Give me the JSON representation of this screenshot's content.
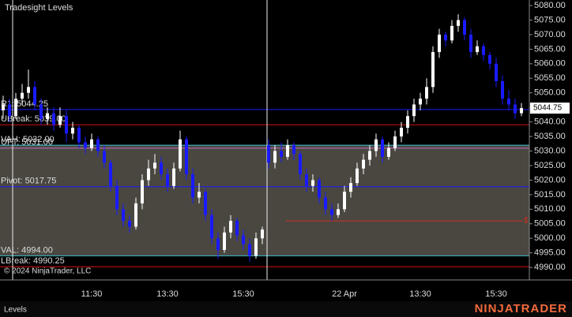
{
  "chart_data": {
    "type": "candlestick",
    "title": "Tradesight Levels",
    "copyright": "© 2024 NinjaTrader, LLC",
    "tab": "Levels",
    "logo": "NINJATRADER",
    "up_color": "#ffffff",
    "down_color": "#1a1aff",
    "categories": [
      null,
      null,
      null,
      null,
      null,
      null,
      null,
      null,
      null,
      null,
      null,
      null,
      null,
      null,
      "11:30",
      null,
      null,
      null,
      null,
      null,
      null,
      null,
      null,
      null,
      null,
      null,
      "13:30",
      null,
      null,
      null,
      null,
      null,
      null,
      null,
      null,
      null,
      null,
      null,
      "15:30",
      null,
      null,
      null,
      null,
      null,
      null,
      null,
      null,
      null,
      null,
      null,
      null,
      null,
      null,
      null,
      "22 Apr",
      null,
      null,
      null,
      null,
      null,
      null,
      null,
      null,
      null,
      null,
      null,
      "13:30",
      null,
      null,
      null,
      null,
      null,
      null,
      null,
      null,
      null,
      null,
      null,
      "15:30",
      null,
      null,
      null,
      null
    ],
    "open": [
      5044,
      5046,
      5042,
      5048,
      5050,
      5052,
      5046,
      5041,
      5043,
      5039,
      5042,
      5036,
      5038,
      5033,
      5031,
      5034,
      5030,
      5026,
      5018,
      5010,
      5006,
      5004,
      5012,
      5020,
      5024,
      5026,
      5022,
      5018,
      5024,
      5034,
      5022,
      5014,
      5016,
      5008,
      5000,
      4996,
      5002,
      5006,
      5001,
      4998,
      4994,
      5000,
      5032,
      5026,
      5030,
      5028,
      5032,
      5029,
      5022,
      5018,
      5020,
      5014,
      5010,
      5008,
      5010,
      5016,
      5019,
      5024,
      5027,
      5030,
      5034,
      5028,
      5031,
      5035,
      5038,
      5042,
      5046,
      5048,
      5052,
      5064,
      5070,
      5068,
      5073,
      5075,
      5070,
      5064,
      5066,
      5063,
      5060,
      5054,
      5048,
      5046,
      5043
    ],
    "high": [
      5049,
      5048,
      5050,
      5053,
      5058,
      5054,
      5048,
      5045,
      5045,
      5045,
      5044,
      5040,
      5039,
      5035,
      5036,
      5035,
      5032,
      5027,
      5020,
      5012,
      5008,
      5014,
      5022,
      5027,
      5029,
      5028,
      5024,
      5026,
      5037,
      5035,
      5024,
      5019,
      5017,
      5010,
      5002,
      5004,
      5008,
      5007,
      5003,
      5000,
      5002,
      5004,
      5034,
      5032,
      5033,
      5034,
      5033,
      5030,
      5024,
      5022,
      5021,
      5016,
      5012,
      5012,
      5018,
      5021,
      5026,
      5029,
      5032,
      5036,
      5035,
      5033,
      5037,
      5040,
      5044,
      5048,
      5050,
      5055,
      5066,
      5072,
      5071,
      5075,
      5077,
      5076,
      5072,
      5068,
      5067,
      5064,
      5062,
      5056,
      5051,
      5048,
      5046.5
    ],
    "low": [
      5041,
      5040,
      5041,
      5046,
      5048,
      5044,
      5039,
      5039,
      5037,
      5038,
      5033,
      5034,
      5031,
      5029,
      5030,
      5028,
      5024,
      5016,
      5008,
      5004,
      5002,
      5003,
      5010,
      5018,
      5022,
      5020,
      5016,
      5017,
      5023,
      5020,
      5012,
      5012,
      5006,
      4998,
      4993,
      4995,
      5000,
      4999,
      4996,
      4992,
      4993,
      4998,
      5024,
      5024,
      5026,
      5027,
      5027,
      5020,
      5016,
      5016,
      5012,
      5008,
      5006,
      5007,
      5009,
      5014,
      5018,
      5022,
      5025,
      5028,
      5026,
      5027,
      5030,
      5033,
      5036,
      5040,
      5044,
      5046,
      5050,
      5062,
      5066,
      5067,
      5071,
      5068,
      5062,
      5063,
      5061,
      5058,
      5052,
      5046,
      5044,
      5041,
      5042
    ],
    "close": [
      5046,
      5042,
      5048,
      5050,
      5052,
      5046,
      5041,
      5043,
      5039,
      5042,
      5036,
      5038,
      5033,
      5031,
      5034,
      5030,
      5026,
      5018,
      5010,
      5006,
      5004,
      5012,
      5020,
      5024,
      5026,
      5022,
      5018,
      5024,
      5034,
      5022,
      5014,
      5016,
      5008,
      5000,
      4996,
      5002,
      5006,
      5001,
      4998,
      4994,
      5000,
      5003,
      5026,
      5030,
      5028,
      5032,
      5029,
      5022,
      5018,
      5020,
      5014,
      5010,
      5008,
      5010,
      5016,
      5019,
      5024,
      5027,
      5030,
      5034,
      5028,
      5031,
      5035,
      5038,
      5042,
      5046,
      5048,
      5052,
      5064,
      5070,
      5068,
      5073,
      5075,
      5070,
      5064,
      5066,
      5063,
      5060,
      5054,
      5048,
      5046,
      5043,
      5044.75
    ],
    "levels": [
      {
        "label": "R1: 5044.25",
        "value": 5044.25,
        "color": "#1a1aff"
      },
      {
        "label": "UBreak: 5039.00",
        "value": 5039,
        "color": "#d01010"
      },
      {
        "label": "VAH: 5032.00",
        "value": 5032,
        "color": "#40c0d0"
      },
      {
        "label": "UFT: 5031.00",
        "value": 5031,
        "color": "#c070c0"
      },
      {
        "label": "Pivot: 5017.75",
        "value": 5017.75,
        "color": "#1a1aff"
      },
      {
        "label": "VAL: 4994.00",
        "value": 4994,
        "color": "#40c0d0"
      },
      {
        "label": "LBreak: 4990.25",
        "value": 4990.25,
        "color": "#d01010"
      }
    ],
    "marker_line": {
      "value": 5006,
      "text": "$",
      "color": "#d03020"
    },
    "ylim": [
      4985.7,
      5081.9
    ],
    "yticks": [
      {
        "value": 4990,
        "label": "4990.00"
      },
      {
        "value": 4995,
        "label": "4995.00"
      },
      {
        "value": 5000,
        "label": "5000.00"
      },
      {
        "value": 5005,
        "label": "5005.00"
      },
      {
        "value": 5010,
        "label": "5010.00"
      },
      {
        "value": 5015,
        "label": "5015.00"
      },
      {
        "value": 5020,
        "label": "5020.00"
      },
      {
        "value": 5025,
        "label": "5025.00"
      },
      {
        "value": 5030,
        "label": "5030.00"
      },
      {
        "value": 5035,
        "label": "5035.00"
      },
      {
        "value": 5040,
        "label": "5040.00"
      },
      {
        "value": 5045,
        "label": "5045.00"
      },
      {
        "value": 5050,
        "label": "5050.00"
      },
      {
        "value": 5055,
        "label": "5055.00"
      },
      {
        "value": 5060,
        "label": "5060.00"
      },
      {
        "value": 5065,
        "label": "5065.00"
      },
      {
        "value": 5070,
        "label": "5070.00"
      },
      {
        "value": 5075,
        "label": "5075.00"
      },
      {
        "value": 5080,
        "label": "5080.00"
      }
    ]
  }
}
